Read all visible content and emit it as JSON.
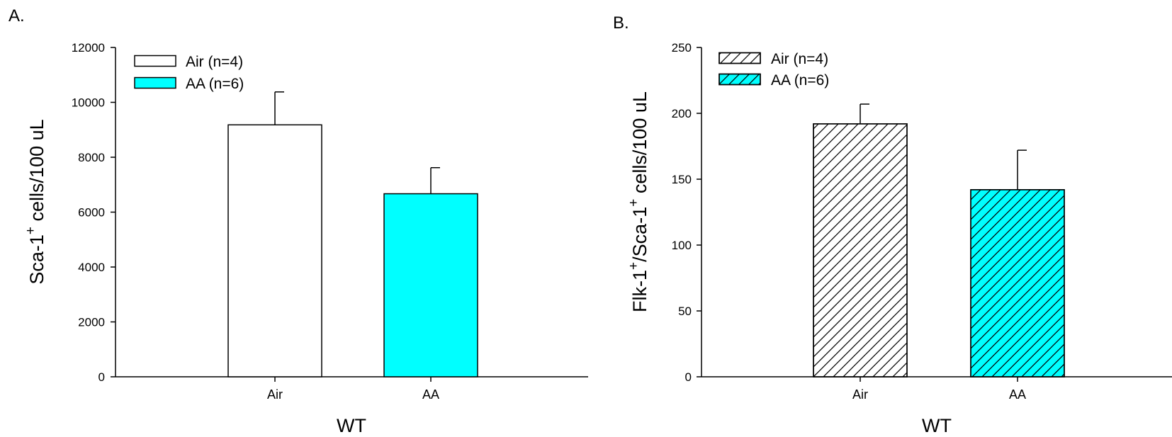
{
  "chart_data": [
    {
      "type": "bar",
      "panel_label": "A.",
      "categories": [
        "Air",
        "AA"
      ],
      "values": [
        9180,
        6670
      ],
      "errors": [
        1200,
        950
      ],
      "colors": [
        "#ffffff",
        "#00ffff"
      ],
      "hatched": false,
      "legend": [
        "Air (n=4)",
        "AA (n=6)"
      ],
      "legend_position": "top-left",
      "xlabel": "WT",
      "ylabel_main": "Sca-1",
      "ylabel_sup": "+",
      "ylabel_rest": " cells/100 uL",
      "ylim": [
        0,
        12000
      ],
      "yticks": [
        0,
        2000,
        4000,
        6000,
        8000,
        10000,
        12000
      ],
      "grid": false
    },
    {
      "type": "bar",
      "panel_label": "B.",
      "categories": [
        "Air",
        "AA"
      ],
      "values": [
        192,
        142
      ],
      "errors": [
        15,
        30
      ],
      "colors": [
        "#ffffff",
        "#00ffff"
      ],
      "hatched": true,
      "legend": [
        "Air (n=4)",
        "AA (n=6)"
      ],
      "legend_position": "top-left",
      "xlabel": "WT",
      "ylabel_main": "Flk-1",
      "ylabel_sup": "+",
      "ylabel_mid": "/Sca-1",
      "ylabel_sup2": "+",
      "ylabel_rest": " cells/100 uL",
      "ylim": [
        0,
        250
      ],
      "yticks": [
        0,
        50,
        100,
        150,
        200,
        250
      ],
      "grid": false
    }
  ]
}
